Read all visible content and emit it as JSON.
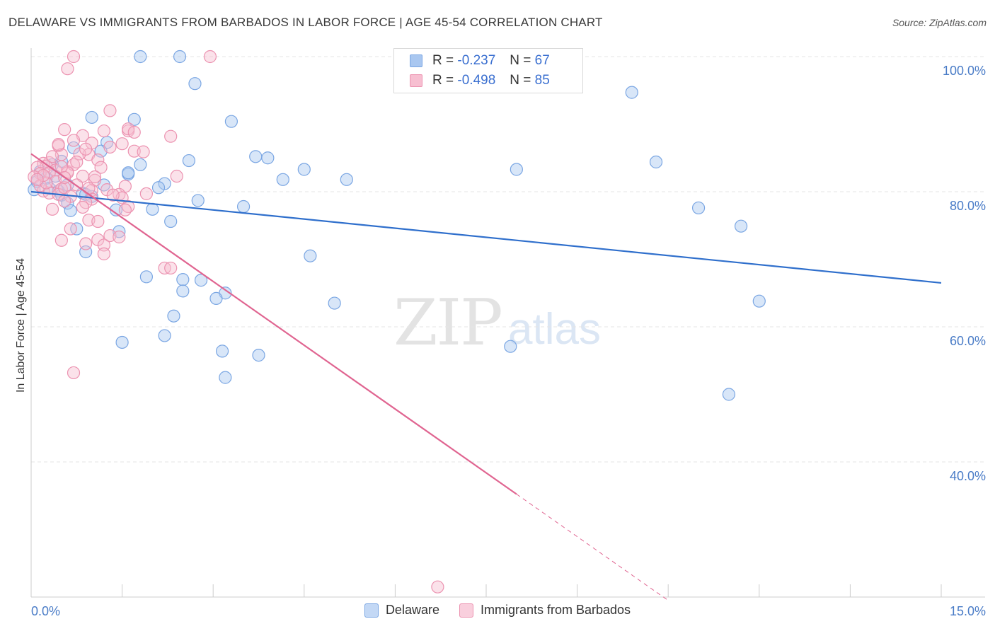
{
  "header": {
    "title": "DELAWARE VS IMMIGRANTS FROM BARBADOS IN LABOR FORCE | AGE 45-54 CORRELATION CHART",
    "source": "Source: ZipAtlas.com"
  },
  "watermark": {
    "zip": "ZIP",
    "atlas": "atlas"
  },
  "legend": {
    "rows": [
      {
        "r_label": "R =",
        "r_value": "-0.237",
        "n_label": "N =",
        "n_value": "67",
        "color": "#a9c7f0",
        "border": "#7aa6e3"
      },
      {
        "r_label": "R =",
        "r_value": "-0.498",
        "n_label": "N =",
        "n_value": "85",
        "color": "#f7bfd1",
        "border": "#ec93b1"
      }
    ]
  },
  "bottom_legend": [
    {
      "label": "Delaware",
      "color": "#a9c7f0",
      "border": "#7aa6e3"
    },
    {
      "label": "Immigrants from Barbados",
      "color": "#f7bfd1",
      "border": "#ec93b1"
    }
  ],
  "chart_data": {
    "type": "scatter",
    "title": "DELAWARE VS IMMIGRANTS FROM BARBADOS IN LABOR FORCE | AGE 45-54 CORRELATION CHART",
    "xlabel": "",
    "ylabel": "In Labor Force | Age 45-54",
    "xlim": [
      0,
      15
    ],
    "ylim": [
      20,
      100
    ],
    "x_tick_labels": [
      "0.0%",
      "15.0%"
    ],
    "y_ticks": [
      40,
      60,
      80,
      100
    ],
    "y_tick_labels": [
      "40.0%",
      "60.0%",
      "80.0%",
      "100.0%"
    ],
    "grid": true,
    "legend_position": "top-center",
    "series": [
      {
        "name": "Delaware",
        "color": "#7aa6e3",
        "fill": "#a9c7f0",
        "line_color": "#2f6fcc",
        "trend": {
          "x0": 0,
          "y0": 80.0,
          "x1": 15,
          "y1": 66.5,
          "dashed_from": null
        },
        "points": [
          [
            1.8,
            100
          ],
          [
            2.45,
            100
          ],
          [
            2.7,
            96
          ],
          [
            1.0,
            91
          ],
          [
            1.7,
            90.7
          ],
          [
            3.3,
            90.4
          ],
          [
            9.9,
            94.7
          ],
          [
            1.25,
            87.3
          ],
          [
            1.15,
            86
          ],
          [
            0.7,
            86.5
          ],
          [
            3.7,
            85.2
          ],
          [
            3.9,
            85
          ],
          [
            2.6,
            84.6
          ],
          [
            10.3,
            84.4
          ],
          [
            0.5,
            84.5
          ],
          [
            1.8,
            84
          ],
          [
            1.6,
            82.6
          ],
          [
            4.5,
            83.3
          ],
          [
            8.0,
            83.3
          ],
          [
            1.6,
            82.8
          ],
          [
            4.15,
            81.8
          ],
          [
            5.2,
            81.8
          ],
          [
            2.2,
            81.2
          ],
          [
            2.1,
            80.6
          ],
          [
            1.2,
            81
          ],
          [
            0.25,
            82
          ],
          [
            0.6,
            81
          ],
          [
            0.3,
            80.5
          ],
          [
            0.1,
            81.5
          ],
          [
            0.85,
            79.8
          ],
          [
            0.9,
            79.6
          ],
          [
            1.0,
            79.3
          ],
          [
            0.45,
            80.1
          ],
          [
            0.5,
            79.5
          ],
          [
            2.75,
            78.7
          ],
          [
            0.6,
            78.3
          ],
          [
            0.65,
            77.2
          ],
          [
            1.4,
            77.3
          ],
          [
            2.0,
            77.4
          ],
          [
            3.5,
            77.8
          ],
          [
            11.0,
            77.6
          ],
          [
            2.3,
            75.6
          ],
          [
            11.7,
            74.9
          ],
          [
            0.75,
            74.5
          ],
          [
            1.45,
            74.1
          ],
          [
            0.9,
            71.1
          ],
          [
            4.6,
            70.5
          ],
          [
            1.9,
            67.4
          ],
          [
            2.5,
            67.0
          ],
          [
            2.8,
            66.9
          ],
          [
            2.5,
            65.3
          ],
          [
            3.2,
            65
          ],
          [
            3.05,
            64.2
          ],
          [
            5.0,
            63.5
          ],
          [
            12.0,
            63.8
          ],
          [
            2.35,
            61.6
          ],
          [
            2.2,
            58.7
          ],
          [
            1.5,
            57.7
          ],
          [
            7.9,
            57.1
          ],
          [
            3.15,
            56.4
          ],
          [
            3.75,
            55.8
          ],
          [
            3.2,
            52.5
          ],
          [
            11.5,
            50
          ],
          [
            0.05,
            80.3
          ],
          [
            0.4,
            82.3
          ],
          [
            0.15,
            83
          ],
          [
            0.35,
            84
          ]
        ]
      },
      {
        "name": "Immigrants from Barbados",
        "color": "#ec93b1",
        "fill": "#f7bfd1",
        "line_color": "#e06591",
        "trend": {
          "x0": 0,
          "y0": 85.6,
          "x1": 10.5,
          "y1": 19.5,
          "dashed_from": 8.0
        },
        "points": [
          [
            0.7,
            100
          ],
          [
            2.95,
            100
          ],
          [
            0.6,
            98.2
          ],
          [
            1.3,
            92
          ],
          [
            0.55,
            89.2
          ],
          [
            1.2,
            89
          ],
          [
            1.6,
            89
          ],
          [
            1.6,
            89.3
          ],
          [
            0.85,
            88.3
          ],
          [
            2.3,
            88.2
          ],
          [
            0.7,
            87.6
          ],
          [
            1.0,
            87.2
          ],
          [
            0.45,
            86.8
          ],
          [
            1.5,
            87.1
          ],
          [
            0.95,
            85.5
          ],
          [
            1.1,
            84.7
          ],
          [
            1.7,
            86
          ],
          [
            0.5,
            85.5
          ],
          [
            0.3,
            84.3
          ],
          [
            0.2,
            84.2
          ],
          [
            0.25,
            83.8
          ],
          [
            0.4,
            83.2
          ],
          [
            0.1,
            83.6
          ],
          [
            0.15,
            82.7
          ],
          [
            0.05,
            82.2
          ],
          [
            0.3,
            82.8
          ],
          [
            0.6,
            83
          ],
          [
            0.7,
            84
          ],
          [
            1.15,
            83.6
          ],
          [
            0.4,
            81.5
          ],
          [
            0.85,
            82.3
          ],
          [
            1.05,
            81.7
          ],
          [
            0.5,
            80.4
          ],
          [
            0.2,
            80.1
          ],
          [
            0.3,
            79.8
          ],
          [
            0.45,
            79.6
          ],
          [
            0.55,
            80.6
          ],
          [
            0.65,
            79.3
          ],
          [
            0.75,
            81
          ],
          [
            1.0,
            80.2
          ],
          [
            1.55,
            80.8
          ],
          [
            1.45,
            79.6
          ],
          [
            1.5,
            79.1
          ],
          [
            1.0,
            78.9
          ],
          [
            0.9,
            78.4
          ],
          [
            0.55,
            78.6
          ],
          [
            0.35,
            77.4
          ],
          [
            0.85,
            77.7
          ],
          [
            1.6,
            77.8
          ],
          [
            1.9,
            79.7
          ],
          [
            2.4,
            82.3
          ],
          [
            0.95,
            75.8
          ],
          [
            1.1,
            75.6
          ],
          [
            0.65,
            74.5
          ],
          [
            0.5,
            72.8
          ],
          [
            0.9,
            72.3
          ],
          [
            1.1,
            72.9
          ],
          [
            1.2,
            72.1
          ],
          [
            1.3,
            73.5
          ],
          [
            1.45,
            73.3
          ],
          [
            1.2,
            70.8
          ],
          [
            2.2,
            68.7
          ],
          [
            2.3,
            68.7
          ],
          [
            0.7,
            53.2
          ],
          [
            6.7,
            21.5
          ],
          [
            0.15,
            80.9
          ],
          [
            0.25,
            81.3
          ],
          [
            0.6,
            82.8
          ],
          [
            0.8,
            85.6
          ],
          [
            1.3,
            86.6
          ],
          [
            1.7,
            88.8
          ],
          [
            0.45,
            87
          ],
          [
            0.35,
            85.2
          ],
          [
            0.2,
            82.4
          ],
          [
            0.1,
            81.8
          ],
          [
            0.9,
            86.3
          ],
          [
            1.05,
            82.2
          ],
          [
            0.75,
            84.4
          ],
          [
            1.25,
            80.3
          ],
          [
            1.55,
            77.3
          ],
          [
            0.5,
            83.7
          ],
          [
            0.55,
            82.1
          ],
          [
            1.85,
            85.9
          ],
          [
            0.95,
            80.5
          ],
          [
            1.35,
            79.5
          ]
        ]
      }
    ]
  }
}
